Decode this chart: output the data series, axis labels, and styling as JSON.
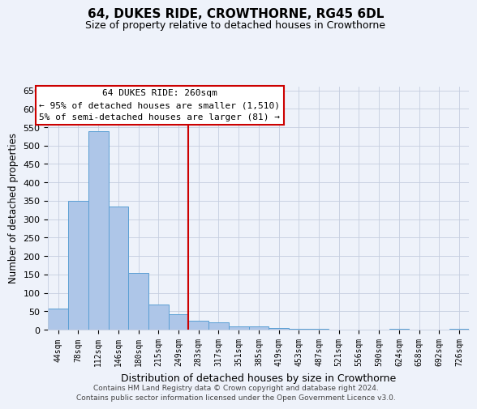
{
  "title": "64, DUKES RIDE, CROWTHORNE, RG45 6DL",
  "subtitle": "Size of property relative to detached houses in Crowthorne",
  "xlabel": "Distribution of detached houses by size in Crowthorne",
  "ylabel": "Number of detached properties",
  "bar_labels": [
    "44sqm",
    "78sqm",
    "112sqm",
    "146sqm",
    "180sqm",
    "215sqm",
    "249sqm",
    "283sqm",
    "317sqm",
    "351sqm",
    "385sqm",
    "419sqm",
    "453sqm",
    "487sqm",
    "521sqm",
    "556sqm",
    "590sqm",
    "624sqm",
    "658sqm",
    "692sqm",
    "726sqm"
  ],
  "bar_values": [
    57,
    350,
    540,
    335,
    155,
    68,
    42,
    25,
    20,
    8,
    8,
    5,
    2,
    2,
    0,
    0,
    0,
    2,
    0,
    0,
    2
  ],
  "bar_color": "#aec6e8",
  "bar_edge_color": "#5a9fd4",
  "vline_x": 6.5,
  "vline_color": "#cc0000",
  "annotation_line1": "64 DUKES RIDE: 260sqm",
  "annotation_line2": "← 95% of detached houses are smaller (1,510)",
  "annotation_line3": "5% of semi-detached houses are larger (81) →",
  "annotation_box_color": "#ffffff",
  "annotation_box_edge": "#cc0000",
  "ylim": [
    0,
    660
  ],
  "yticks": [
    0,
    50,
    100,
    150,
    200,
    250,
    300,
    350,
    400,
    450,
    500,
    550,
    600,
    650
  ],
  "footer1": "Contains HM Land Registry data © Crown copyright and database right 2024.",
  "footer2": "Contains public sector information licensed under the Open Government Licence v3.0.",
  "bg_color": "#eef2fa",
  "grid_color": "#c5cedf"
}
